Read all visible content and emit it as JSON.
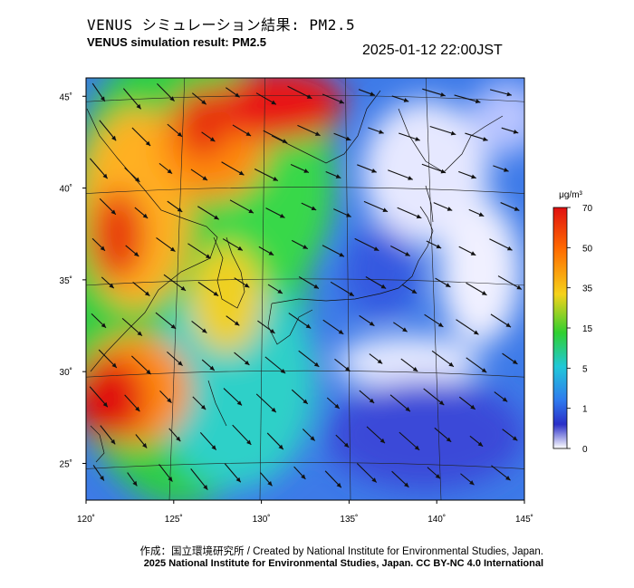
{
  "header": {
    "title_jp": "VENUS シミュレーション結果: PM2.5",
    "title_en": "VENUS simulation result: PM2.5",
    "timestamp": "2025-01-12 22:00JST"
  },
  "map": {
    "lon_range": [
      120,
      145
    ],
    "lat_range": [
      23,
      46
    ],
    "lon_ticks": [
      {
        "value": 120,
        "label": "120˚"
      },
      {
        "value": 125,
        "label": "125˚"
      },
      {
        "value": 130,
        "label": "130˚"
      },
      {
        "value": 135,
        "label": "135˚"
      },
      {
        "value": 140,
        "label": "140˚"
      },
      {
        "value": 145,
        "label": "145˚"
      }
    ],
    "lat_ticks": [
      {
        "value": 45,
        "label": "45˚"
      },
      {
        "value": 40,
        "label": "40˚"
      },
      {
        "value": 35,
        "label": "35˚"
      },
      {
        "value": 30,
        "label": "30˚"
      },
      {
        "value": 25,
        "label": "25˚"
      }
    ],
    "field_colors": {
      "very_low": "#f2f2ff",
      "low": "#3d6fe6",
      "mid": "#2fd0d8",
      "moderate": "#29cf3a",
      "elevated": "#f0e020",
      "high": "#ff7800",
      "very_high": "#e01010"
    }
  },
  "colorbar": {
    "unit": "μg/m³",
    "ticks": [
      "70",
      "50",
      "35",
      "15",
      "5",
      "1",
      "0"
    ],
    "stops": [
      "#e01010",
      "#ff6a00",
      "#f5d21a",
      "#30d030",
      "#20c8d8",
      "#2f7aee",
      "#2a2fc8",
      "#ffffff"
    ]
  },
  "credits": {
    "line1": "作成：国立環境研究所 / Created by National Institute for Environmental Studies, Japan.",
    "line2": "2025 National Institute for Environmental Studies, Japan. CC BY-NC 4.0 International"
  }
}
